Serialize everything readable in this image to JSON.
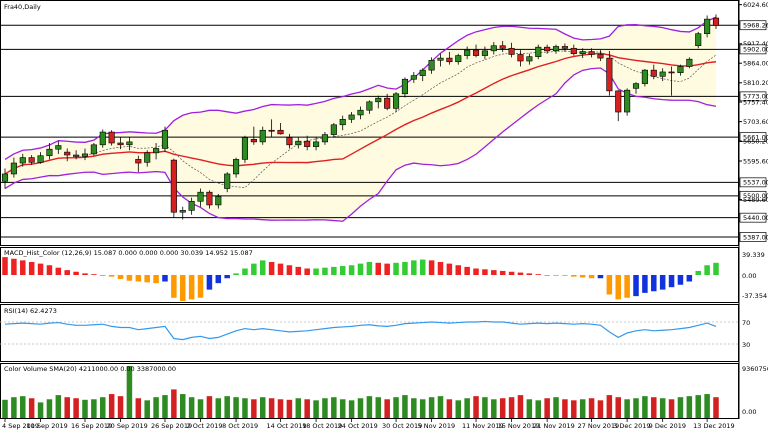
{
  "chart_title": "Fra40,Daily",
  "colors": {
    "bull": "#2e8b22",
    "bear": "#d42020",
    "band": "#a020e0",
    "sma": "#e02020",
    "band_fill": "#fffbe0",
    "macd_up": "#33cc33",
    "macd_down": "#ee2222",
    "macd_orange": "#ff9900",
    "macd_blue": "#1133dd",
    "rsi": "#3399ee"
  },
  "price_panel": {
    "levels": [
      {
        "value": "6024.60",
        "boxed": false
      },
      {
        "value": "5968.26",
        "boxed": true
      },
      {
        "value": "5917.40",
        "boxed": false
      },
      {
        "value": "5902.00",
        "boxed": true
      },
      {
        "value": "5864.00",
        "boxed": false
      },
      {
        "value": "5810.20",
        "boxed": false
      },
      {
        "value": "5773.00",
        "boxed": true
      },
      {
        "value": "5757.40",
        "boxed": false
      },
      {
        "value": "5703.60",
        "boxed": false
      },
      {
        "value": "5661.00",
        "boxed": true
      },
      {
        "value": "5650.20",
        "boxed": false
      },
      {
        "value": "5595.60",
        "boxed": false
      },
      {
        "value": "5537.00",
        "boxed": true
      },
      {
        "value": "5500.00",
        "boxed": true
      },
      {
        "value": "5489.60",
        "boxed": false
      },
      {
        "value": "5440.00",
        "boxed": true
      },
      {
        "value": "5387.00",
        "boxed": true
      }
    ]
  },
  "macd_panel": {
    "label": "MACD_Hist_Color (12,26,9) 15.087 0.000 0.000 0.000 30.039 14.952 15.087",
    "axis": [
      "39.339",
      "0.00",
      "-37.354"
    ]
  },
  "rsi_panel": {
    "label": "RSI(14) 62.4273",
    "axis": [
      "70",
      "30"
    ]
  },
  "volume_panel": {
    "label": "Color Volume SMA(20) 4211000.00 0.00 3387000.00",
    "axis": [
      "9360750",
      "0.00"
    ]
  },
  "x_axis": [
    "4 Sep 2019",
    "10 Sep 2019",
    "16 Sep 2019",
    "20 Sep 2019",
    "26 Sep 2019",
    "2 Oct 2019",
    "8 Oct 2019",
    "14 Oct 2019",
    "18 Oct 2019",
    "24 Oct 2019",
    "30 Oct 2019",
    "5 Nov 2019",
    "11 Nov 2019",
    "15 Nov 2019",
    "21 Nov 2019",
    "27 Nov 2019",
    "3 Dec 2019",
    "9 Dec 2019",
    "13 Dec 2019"
  ],
  "chart_data": {
    "type": "candlestick",
    "title": "Fra40,Daily",
    "ylim": [
      5365,
      6032
    ],
    "candles": [
      {
        "o": 5540,
        "h": 5575,
        "l": 5520,
        "c": 5560
      },
      {
        "o": 5560,
        "h": 5605,
        "l": 5550,
        "c": 5590
      },
      {
        "o": 5590,
        "h": 5615,
        "l": 5580,
        "c": 5605
      },
      {
        "o": 5605,
        "h": 5612,
        "l": 5585,
        "c": 5592
      },
      {
        "o": 5592,
        "h": 5620,
        "l": 5588,
        "c": 5610
      },
      {
        "o": 5610,
        "h": 5645,
        "l": 5600,
        "c": 5628
      },
      {
        "o": 5628,
        "h": 5650,
        "l": 5615,
        "c": 5638
      },
      {
        "o": 5620,
        "h": 5630,
        "l": 5595,
        "c": 5612
      },
      {
        "o": 5612,
        "h": 5625,
        "l": 5600,
        "c": 5608
      },
      {
        "o": 5608,
        "h": 5630,
        "l": 5598,
        "c": 5615
      },
      {
        "o": 5615,
        "h": 5645,
        "l": 5610,
        "c": 5640
      },
      {
        "o": 5640,
        "h": 5682,
        "l": 5632,
        "c": 5675
      },
      {
        "o": 5675,
        "h": 5680,
        "l": 5638,
        "c": 5645
      },
      {
        "o": 5645,
        "h": 5660,
        "l": 5628,
        "c": 5640
      },
      {
        "o": 5640,
        "h": 5660,
        "l": 5625,
        "c": 5648
      },
      {
        "o": 5600,
        "h": 5610,
        "l": 5565,
        "c": 5590
      },
      {
        "o": 5592,
        "h": 5625,
        "l": 5580,
        "c": 5618
      },
      {
        "o": 5618,
        "h": 5645,
        "l": 5600,
        "c": 5630
      },
      {
        "o": 5630,
        "h": 5690,
        "l": 5620,
        "c": 5680
      },
      {
        "o": 5598,
        "h": 5602,
        "l": 5440,
        "c": 5455
      },
      {
        "o": 5455,
        "h": 5470,
        "l": 5435,
        "c": 5460
      },
      {
        "o": 5460,
        "h": 5495,
        "l": 5448,
        "c": 5485
      },
      {
        "o": 5485,
        "h": 5520,
        "l": 5470,
        "c": 5510
      },
      {
        "o": 5510,
        "h": 5515,
        "l": 5465,
        "c": 5475
      },
      {
        "o": 5475,
        "h": 5505,
        "l": 5465,
        "c": 5498
      },
      {
        "o": 5520,
        "h": 5565,
        "l": 5510,
        "c": 5560
      },
      {
        "o": 5560,
        "h": 5605,
        "l": 5550,
        "c": 5600
      },
      {
        "o": 5600,
        "h": 5665,
        "l": 5590,
        "c": 5660
      },
      {
        "o": 5655,
        "h": 5690,
        "l": 5640,
        "c": 5648
      },
      {
        "o": 5648,
        "h": 5690,
        "l": 5640,
        "c": 5680
      },
      {
        "o": 5680,
        "h": 5710,
        "l": 5660,
        "c": 5678
      },
      {
        "o": 5680,
        "h": 5700,
        "l": 5668,
        "c": 5670
      },
      {
        "o": 5660,
        "h": 5670,
        "l": 5630,
        "c": 5640
      },
      {
        "o": 5640,
        "h": 5660,
        "l": 5630,
        "c": 5650
      },
      {
        "o": 5650,
        "h": 5665,
        "l": 5625,
        "c": 5635
      },
      {
        "o": 5635,
        "h": 5660,
        "l": 5625,
        "c": 5648
      },
      {
        "o": 5648,
        "h": 5675,
        "l": 5640,
        "c": 5668
      },
      {
        "o": 5668,
        "h": 5700,
        "l": 5660,
        "c": 5695
      },
      {
        "o": 5695,
        "h": 5720,
        "l": 5680,
        "c": 5710
      },
      {
        "o": 5710,
        "h": 5730,
        "l": 5700,
        "c": 5722
      },
      {
        "o": 5722,
        "h": 5745,
        "l": 5710,
        "c": 5735
      },
      {
        "o": 5735,
        "h": 5762,
        "l": 5725,
        "c": 5758
      },
      {
        "o": 5758,
        "h": 5775,
        "l": 5740,
        "c": 5768
      },
      {
        "o": 5768,
        "h": 5780,
        "l": 5735,
        "c": 5740
      },
      {
        "o": 5740,
        "h": 5785,
        "l": 5730,
        "c": 5780
      },
      {
        "o": 5780,
        "h": 5825,
        "l": 5770,
        "c": 5820
      },
      {
        "o": 5820,
        "h": 5840,
        "l": 5810,
        "c": 5830
      },
      {
        "o": 5830,
        "h": 5850,
        "l": 5815,
        "c": 5845
      },
      {
        "o": 5845,
        "h": 5880,
        "l": 5835,
        "c": 5872
      },
      {
        "o": 5872,
        "h": 5890,
        "l": 5855,
        "c": 5878
      },
      {
        "o": 5878,
        "h": 5895,
        "l": 5860,
        "c": 5868
      },
      {
        "o": 5868,
        "h": 5890,
        "l": 5860,
        "c": 5885
      },
      {
        "o": 5885,
        "h": 5910,
        "l": 5875,
        "c": 5900
      },
      {
        "o": 5900,
        "h": 5915,
        "l": 5880,
        "c": 5885
      },
      {
        "o": 5885,
        "h": 5910,
        "l": 5875,
        "c": 5898
      },
      {
        "o": 5898,
        "h": 5922,
        "l": 5888,
        "c": 5912
      },
      {
        "o": 5912,
        "h": 5925,
        "l": 5895,
        "c": 5905
      },
      {
        "o": 5905,
        "h": 5920,
        "l": 5880,
        "c": 5888
      },
      {
        "o": 5888,
        "h": 5900,
        "l": 5855,
        "c": 5870
      },
      {
        "o": 5870,
        "h": 5890,
        "l": 5860,
        "c": 5882
      },
      {
        "o": 5882,
        "h": 5915,
        "l": 5875,
        "c": 5908
      },
      {
        "o": 5908,
        "h": 5915,
        "l": 5890,
        "c": 5898
      },
      {
        "o": 5898,
        "h": 5915,
        "l": 5890,
        "c": 5910
      },
      {
        "o": 5910,
        "h": 5918,
        "l": 5895,
        "c": 5905
      },
      {
        "o": 5905,
        "h": 5915,
        "l": 5885,
        "c": 5890
      },
      {
        "o": 5890,
        "h": 5905,
        "l": 5878,
        "c": 5896
      },
      {
        "o": 5896,
        "h": 5905,
        "l": 5880,
        "c": 5888
      },
      {
        "o": 5888,
        "h": 5900,
        "l": 5870,
        "c": 5878
      },
      {
        "o": 5878,
        "h": 5898,
        "l": 5775,
        "c": 5788
      },
      {
        "o": 5788,
        "h": 5790,
        "l": 5705,
        "c": 5730
      },
      {
        "o": 5730,
        "h": 5795,
        "l": 5720,
        "c": 5790
      },
      {
        "o": 5795,
        "h": 5812,
        "l": 5780,
        "c": 5808
      },
      {
        "o": 5808,
        "h": 5848,
        "l": 5800,
        "c": 5845
      },
      {
        "o": 5845,
        "h": 5860,
        "l": 5820,
        "c": 5828
      },
      {
        "o": 5828,
        "h": 5850,
        "l": 5815,
        "c": 5840
      },
      {
        "o": 5840,
        "h": 5855,
        "l": 5775,
        "c": 5838
      },
      {
        "o": 5838,
        "h": 5860,
        "l": 5830,
        "c": 5855
      },
      {
        "o": 5855,
        "h": 5880,
        "l": 5850,
        "c": 5875
      },
      {
        "o": 5912,
        "h": 5950,
        "l": 5905,
        "c": 5945
      },
      {
        "o": 5945,
        "h": 5995,
        "l": 5935,
        "c": 5985
      },
      {
        "o": 5988,
        "h": 5998,
        "l": 5958,
        "c": 5968
      }
    ],
    "macd_hist": [
      22,
      20,
      18,
      16,
      14,
      12,
      9,
      6,
      4,
      2,
      1,
      0,
      -2,
      -5,
      -7,
      -8,
      -9,
      -10,
      -8,
      -28,
      -32,
      -30,
      -28,
      -18,
      -10,
      -4,
      2,
      8,
      14,
      18,
      16,
      14,
      12,
      10,
      8,
      8,
      9,
      10,
      11,
      12,
      14,
      16,
      15,
      14,
      15,
      16,
      18,
      19,
      18,
      16,
      14,
      12,
      10,
      8,
      7,
      6,
      5,
      4,
      3,
      2,
      1,
      0,
      -1,
      -1,
      -2,
      -3,
      -4,
      -4,
      -24,
      -30,
      -28,
      -26,
      -22,
      -20,
      -18,
      -15,
      -12,
      -8,
      5,
      12,
      15
    ],
    "macd_colors": [
      "r",
      "r",
      "r",
      "r",
      "r",
      "r",
      "r",
      "r",
      "r",
      "r",
      "r",
      "r",
      "o",
      "o",
      "o",
      "o",
      "o",
      "o",
      "b",
      "o",
      "o",
      "o",
      "o",
      "b",
      "b",
      "b",
      "g",
      "g",
      "g",
      "g",
      "r",
      "r",
      "r",
      "r",
      "r",
      "g",
      "g",
      "g",
      "g",
      "g",
      "g",
      "g",
      "r",
      "r",
      "g",
      "g",
      "g",
      "g",
      "r",
      "r",
      "r",
      "r",
      "r",
      "r",
      "r",
      "r",
      "r",
      "r",
      "r",
      "r",
      "r",
      "r",
      "o",
      "o",
      "o",
      "o",
      "o",
      "b",
      "o",
      "o",
      "o",
      "b",
      "b",
      "b",
      "b",
      "b",
      "b",
      "b",
      "g",
      "g",
      "g"
    ],
    "rsi": [
      66,
      67,
      68,
      67,
      66,
      68,
      69,
      66,
      64,
      64,
      65,
      66,
      62,
      60,
      60,
      56,
      58,
      60,
      62,
      40,
      38,
      42,
      44,
      40,
      42,
      48,
      54,
      58,
      56,
      58,
      56,
      54,
      52,
      53,
      54,
      56,
      58,
      60,
      61,
      62,
      64,
      65,
      63,
      62,
      64,
      67,
      68,
      69,
      70,
      69,
      68,
      69,
      70,
      70,
      71,
      70,
      70,
      68,
      66,
      67,
      68,
      67,
      68,
      67,
      66,
      67,
      66,
      64,
      52,
      42,
      50,
      54,
      56,
      54,
      55,
      56,
      58,
      60,
      64,
      68,
      62
    ],
    "volume": [
      35,
      40,
      42,
      38,
      30,
      36,
      44,
      40,
      38,
      35,
      36,
      40,
      46,
      42,
      100,
      38,
      34,
      40,
      44,
      55,
      46,
      40,
      36,
      42,
      38,
      42,
      40,
      38,
      36,
      40,
      38,
      36,
      35,
      38,
      36,
      34,
      38,
      40,
      36,
      34,
      38,
      42,
      40,
      36,
      40,
      44,
      38,
      36,
      40,
      42,
      36,
      34,
      38,
      42,
      40,
      36,
      38,
      40,
      44,
      36,
      34,
      38,
      40,
      36,
      34,
      36,
      38,
      34,
      44,
      40,
      36,
      38,
      42,
      40,
      38,
      36,
      40,
      42,
      44,
      46,
      40
    ]
  }
}
